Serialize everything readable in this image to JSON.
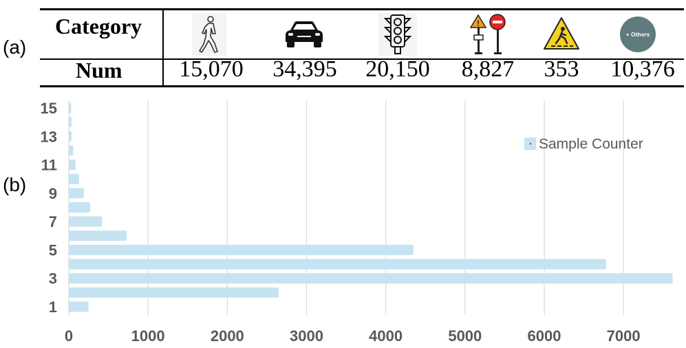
{
  "panel_labels": {
    "a": "(a)",
    "b": "(b)"
  },
  "table": {
    "header_category": "Category",
    "header_num": "Num",
    "categories": [
      {
        "icon": "pedestrian-icon",
        "num": "15,070"
      },
      {
        "icon": "car-icon",
        "num": "34,395"
      },
      {
        "icon": "traffic-light-icon",
        "num": "20,150"
      },
      {
        "icon": "traffic-sign-icon",
        "num": "8,827"
      },
      {
        "icon": "crosswalk-sign-icon",
        "num": "353"
      },
      {
        "icon": "others-icon",
        "num": "10,376",
        "icon_text": "+ Others"
      }
    ]
  },
  "chart_data": {
    "type": "bar",
    "orientation": "horizontal",
    "categories": [
      "1",
      "2",
      "3",
      "4",
      "5",
      "6",
      "7",
      "8",
      "9",
      "10",
      "11",
      "12",
      "13",
      "14",
      "15"
    ],
    "series": [
      {
        "name": "Sample Counter",
        "values": [
          250,
          2650,
          7620,
          6780,
          4350,
          730,
          420,
          270,
          190,
          130,
          85,
          55,
          35,
          35,
          30
        ]
      }
    ],
    "ytick_labels": [
      "1",
      "3",
      "5",
      "7",
      "9",
      "11",
      "13",
      "15"
    ],
    "xticks": [
      0,
      1000,
      2000,
      3000,
      4000,
      5000,
      6000,
      7000
    ],
    "xlim": [
      0,
      7650
    ],
    "grid": true,
    "legend_position": "top-right",
    "colors": {
      "bar": "#c6e3f2",
      "grid": "#d9d9d9",
      "tick_text": "#595959",
      "legend_text": "#595959"
    }
  }
}
